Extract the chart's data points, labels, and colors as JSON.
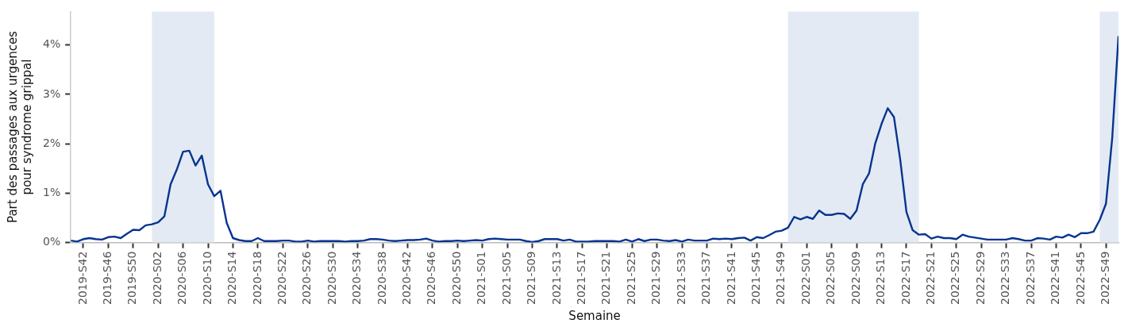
{
  "chart_data": {
    "type": "line",
    "xlabel": "Semaine",
    "ylabel": "Part des passages aux urgences\npour syndrome grippal",
    "x": [
      "2019-09-30",
      "2019-10-07",
      "2019-10-14",
      "2019-10-21",
      "2019-10-28",
      "2019-11-04",
      "2019-11-11",
      "2019-11-18",
      "2019-11-25",
      "2019-12-02",
      "2019-12-09",
      "2019-12-16",
      "2019-12-23",
      "2019-12-30",
      "2020-01-06",
      "2020-01-13",
      "2020-01-20",
      "2020-01-27",
      "2020-02-03",
      "2020-02-10",
      "2020-02-17",
      "2020-02-24",
      "2020-03-02",
      "2020-03-09",
      "2020-03-16",
      "2020-03-23",
      "2020-03-30",
      "2020-04-06",
      "2020-04-13",
      "2020-04-20",
      "2020-04-27",
      "2020-05-04",
      "2020-05-11",
      "2020-05-18",
      "2020-05-25",
      "2020-06-01",
      "2020-06-08",
      "2020-06-15",
      "2020-06-22",
      "2020-06-29",
      "2020-07-06",
      "2020-07-13",
      "2020-07-20",
      "2020-07-27",
      "2020-08-03",
      "2020-08-10",
      "2020-08-17",
      "2020-08-24",
      "2020-08-31",
      "2020-09-07",
      "2020-09-14",
      "2020-09-21",
      "2020-09-28",
      "2020-10-05",
      "2020-10-12",
      "2020-10-19",
      "2020-10-26",
      "2020-11-02",
      "2020-11-09",
      "2020-11-16",
      "2020-11-23",
      "2020-11-30",
      "2020-12-07",
      "2020-12-14",
      "2020-12-21",
      "2020-12-28",
      "2021-01-04",
      "2021-01-11",
      "2021-01-18",
      "2021-01-25",
      "2021-02-01",
      "2021-02-08",
      "2021-02-15",
      "2021-02-22",
      "2021-03-01",
      "2021-03-08",
      "2021-03-15",
      "2021-03-22",
      "2021-03-29",
      "2021-04-05",
      "2021-04-12",
      "2021-04-19",
      "2021-04-26",
      "2021-05-03",
      "2021-05-10",
      "2021-05-17",
      "2021-05-24",
      "2021-05-31",
      "2021-06-07",
      "2021-06-14",
      "2021-06-21",
      "2021-06-28",
      "2021-07-05",
      "2021-07-12",
      "2021-07-19",
      "2021-07-26",
      "2021-08-02",
      "2021-08-09",
      "2021-08-16",
      "2021-08-23",
      "2021-08-30",
      "2021-09-06",
      "2021-09-13",
      "2021-09-20",
      "2021-09-27",
      "2021-10-04",
      "2021-10-11",
      "2021-10-18",
      "2021-10-25",
      "2021-11-01",
      "2021-11-08",
      "2021-11-15",
      "2021-11-22",
      "2021-11-29",
      "2021-12-06",
      "2021-12-13",
      "2021-12-20",
      "2021-12-27",
      "2022-01-03",
      "2022-01-10",
      "2022-01-17",
      "2022-01-24",
      "2022-01-31",
      "2022-02-07",
      "2022-02-14",
      "2022-02-21",
      "2022-02-28",
      "2022-03-07",
      "2022-03-14",
      "2022-03-21",
      "2022-03-28",
      "2022-04-04",
      "2022-04-11",
      "2022-04-18",
      "2022-04-25",
      "2022-05-02",
      "2022-05-09",
      "2022-05-16",
      "2022-05-23",
      "2022-05-30",
      "2022-06-06",
      "2022-06-13",
      "2022-06-20",
      "2022-06-27",
      "2022-07-04",
      "2022-07-11",
      "2022-07-18",
      "2022-07-25",
      "2022-08-01",
      "2022-08-08",
      "2022-08-15",
      "2022-08-22",
      "2022-08-29",
      "2022-09-05",
      "2022-09-12",
      "2022-09-19",
      "2022-09-26",
      "2022-10-03",
      "2022-10-10",
      "2022-10-17",
      "2022-10-24",
      "2022-10-31",
      "2022-11-07",
      "2022-11-14",
      "2022-11-21",
      "2022-11-28",
      "2022-12-05",
      "2022-12-12",
      "2022-12-19"
    ],
    "color": "#06348f",
    "values": [
      0.04,
      0.02,
      0.07,
      0.09,
      0.07,
      0.06,
      0.11,
      0.12,
      0.09,
      0.18,
      0.26,
      0.25,
      0.35,
      0.37,
      0.41,
      0.53,
      1.18,
      1.48,
      1.84,
      1.86,
      1.56,
      1.76,
      1.18,
      0.94,
      1.05,
      0.4,
      0.09,
      0.05,
      0.03,
      0.03,
      0.09,
      0.03,
      0.03,
      0.03,
      0.04,
      0.04,
      0.02,
      0.02,
      0.04,
      0.02,
      0.03,
      0.03,
      0.03,
      0.03,
      0.02,
      0.03,
      0.03,
      0.04,
      0.07,
      0.07,
      0.06,
      0.04,
      0.03,
      0.04,
      0.05,
      0.05,
      0.06,
      0.08,
      0.04,
      0.02,
      0.03,
      0.03,
      0.04,
      0.03,
      0.04,
      0.05,
      0.04,
      0.07,
      0.08,
      0.07,
      0.06,
      0.06,
      0.06,
      0.03,
      0.01,
      0.03,
      0.07,
      0.07,
      0.07,
      0.04,
      0.06,
      0.02,
      0.02,
      0.02,
      0.03,
      0.03,
      0.03,
      0.03,
      0.02,
      0.06,
      0.02,
      0.07,
      0.03,
      0.06,
      0.06,
      0.04,
      0.03,
      0.05,
      0.02,
      0.06,
      0.04,
      0.04,
      0.04,
      0.08,
      0.07,
      0.08,
      0.07,
      0.09,
      0.1,
      0.04,
      0.11,
      0.09,
      0.15,
      0.22,
      0.24,
      0.3,
      0.52,
      0.47,
      0.52,
      0.48,
      0.65,
      0.56,
      0.56,
      0.59,
      0.58,
      0.48,
      0.65,
      1.18,
      1.4,
      2.01,
      2.4,
      2.72,
      2.54,
      1.68,
      0.62,
      0.25,
      0.16,
      0.17,
      0.08,
      0.12,
      0.09,
      0.09,
      0.07,
      0.16,
      0.12,
      0.1,
      0.08,
      0.06,
      0.06,
      0.06,
      0.06,
      0.09,
      0.07,
      0.04,
      0.04,
      0.09,
      0.08,
      0.06,
      0.12,
      0.1,
      0.16,
      0.11,
      0.19,
      0.19,
      0.22,
      0.46,
      0.79,
      2.12,
      4.18
    ],
    "xlim": [
      "2019-09-30",
      "2022-12-19"
    ],
    "xticks": [
      {
        "value": "2019-10-14",
        "label": "2019-S42"
      },
      {
        "value": "2019-11-11",
        "label": "2019-S46"
      },
      {
        "value": "2019-12-09",
        "label": "2019-S50"
      },
      {
        "value": "2020-01-06",
        "label": "2020-S02"
      },
      {
        "value": "2020-02-03",
        "label": "2020-S06"
      },
      {
        "value": "2020-03-02",
        "label": "2020-S10"
      },
      {
        "value": "2020-03-30",
        "label": "2020-S14"
      },
      {
        "value": "2020-04-27",
        "label": "2020-S18"
      },
      {
        "value": "2020-05-25",
        "label": "2020-S22"
      },
      {
        "value": "2020-06-22",
        "label": "2020-S26"
      },
      {
        "value": "2020-07-20",
        "label": "2020-S30"
      },
      {
        "value": "2020-08-17",
        "label": "2020-S34"
      },
      {
        "value": "2020-09-14",
        "label": "2020-S38"
      },
      {
        "value": "2020-10-12",
        "label": "2020-S42"
      },
      {
        "value": "2020-11-09",
        "label": "2020-S46"
      },
      {
        "value": "2020-12-07",
        "label": "2020-S50"
      },
      {
        "value": "2021-01-04",
        "label": "2021-S01"
      },
      {
        "value": "2021-02-01",
        "label": "2021-S05"
      },
      {
        "value": "2021-03-01",
        "label": "2021-S09"
      },
      {
        "value": "2021-03-29",
        "label": "2021-S13"
      },
      {
        "value": "2021-04-26",
        "label": "2021-S17"
      },
      {
        "value": "2021-05-24",
        "label": "2021-S21"
      },
      {
        "value": "2021-06-21",
        "label": "2021-S25"
      },
      {
        "value": "2021-07-19",
        "label": "2021-S29"
      },
      {
        "value": "2021-08-16",
        "label": "2021-S33"
      },
      {
        "value": "2021-09-13",
        "label": "2021-S37"
      },
      {
        "value": "2021-10-11",
        "label": "2021-S41"
      },
      {
        "value": "2021-11-08",
        "label": "2021-S45"
      },
      {
        "value": "2021-12-06",
        "label": "2021-S49"
      },
      {
        "value": "2022-01-03",
        "label": "2022-S01"
      },
      {
        "value": "2022-01-31",
        "label": "2022-S05"
      },
      {
        "value": "2022-02-28",
        "label": "2022-S09"
      },
      {
        "value": "2022-03-28",
        "label": "2022-S13"
      },
      {
        "value": "2022-04-25",
        "label": "2022-S17"
      },
      {
        "value": "2022-05-23",
        "label": "2022-S21"
      },
      {
        "value": "2022-06-20",
        "label": "2022-S25"
      },
      {
        "value": "2022-07-18",
        "label": "2022-S29"
      },
      {
        "value": "2022-08-15",
        "label": "2022-S33"
      },
      {
        "value": "2022-09-12",
        "label": "2022-S37"
      },
      {
        "value": "2022-10-10",
        "label": "2022-S41"
      },
      {
        "value": "2022-11-07",
        "label": "2022-S45"
      },
      {
        "value": "2022-12-05",
        "label": "2022-S49"
      }
    ],
    "ylim": [
      0,
      4.68
    ],
    "yticks": [
      {
        "value": 0,
        "label": "0%"
      },
      {
        "value": 1,
        "label": "1%"
      },
      {
        "value": 2,
        "label": "2%"
      },
      {
        "value": 3,
        "label": "3%"
      },
      {
        "value": 4,
        "label": "4%"
      }
    ],
    "bands": [
      {
        "axis": "x",
        "from": "2019-12-30",
        "to": "2020-03-09",
        "color": "#e3eaf3"
      },
      {
        "axis": "x",
        "from": "2021-12-13",
        "to": "2022-05-09",
        "color": "#e3eaf3"
      },
      {
        "axis": "x",
        "from": "2022-11-28",
        "to": "2022-12-19",
        "color": "#e3eaf3"
      }
    ]
  }
}
